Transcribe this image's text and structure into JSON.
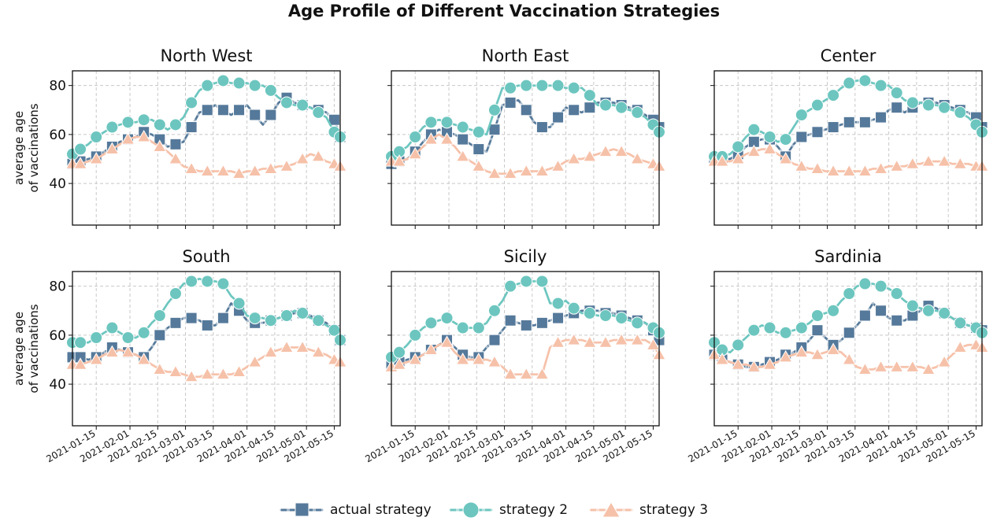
{
  "title": "Age Profile of Different Vaccination Strategies",
  "colors": {
    "actual": "#55799a",
    "strategy2": "#6cc6bf",
    "strategy3": "#f6c1a9",
    "grid": "#c8c8c8"
  },
  "chart_data": {
    "type": "line",
    "title": "Age Profile of Different Vaccination Strategies",
    "ylabel": "average age of vaccinations",
    "xlabel": "",
    "ylim": [
      23,
      86
    ],
    "xlim": [
      "2021-01-03",
      "2021-05-18"
    ],
    "yticks": [
      40,
      60,
      80
    ],
    "xticks": [
      "2021-01-15",
      "2021-02-01",
      "2021-02-15",
      "2021-03-01",
      "2021-03-15",
      "2021-04-01",
      "2021-04-15",
      "2021-05-01",
      "2021-05-15"
    ],
    "grid": true,
    "legend": {
      "placement": "bottom-center",
      "entries": [
        "actual strategy",
        "strategy 2",
        "strategy 3"
      ]
    },
    "x": [
      "2021-01-03",
      "2021-01-07",
      "2021-01-11",
      "2021-01-15",
      "2021-01-19",
      "2021-01-23",
      "2021-01-27",
      "2021-01-31",
      "2021-02-04",
      "2021-02-08",
      "2021-02-12",
      "2021-02-16",
      "2021-02-20",
      "2021-02-24",
      "2021-02-28",
      "2021-03-04",
      "2021-03-08",
      "2021-03-12",
      "2021-03-16",
      "2021-03-20",
      "2021-03-24",
      "2021-03-28",
      "2021-04-01",
      "2021-04-05",
      "2021-04-09",
      "2021-04-13",
      "2021-04-17",
      "2021-04-21",
      "2021-04-25",
      "2021-04-29",
      "2021-05-03",
      "2021-05-07",
      "2021-05-11",
      "2021-05-15",
      "2021-05-18"
    ],
    "panels": [
      {
        "title": "North West",
        "series": [
          {
            "name": "actual strategy",
            "values": [
              48,
              49,
              50,
              51,
              53,
              55,
              57,
              58,
              59,
              61,
              60,
              58,
              55,
              56,
              57,
              63,
              69,
              70,
              72,
              70,
              68,
              70,
              72,
              68,
              64,
              68,
              73,
              75,
              73,
              72,
              71,
              70,
              69,
              66,
              59
            ]
          },
          {
            "name": "strategy 2",
            "values": [
              52,
              54,
              56,
              59,
              61,
              63,
              64,
              65,
              65,
              66,
              66,
              64,
              62,
              64,
              67,
              73,
              78,
              80,
              81,
              82,
              81,
              81,
              81,
              80,
              80,
              78,
              75,
              73,
              72,
              72,
              71,
              69,
              67,
              61,
              59
            ]
          },
          {
            "name": "strategy 3",
            "values": [
              48,
              48,
              49,
              50,
              52,
              54,
              56,
              58,
              59,
              59,
              57,
              55,
              53,
              50,
              47,
              46,
              45,
              45,
              45,
              45,
              45,
              44,
              45,
              45,
              46,
              46,
              47,
              47,
              48,
              50,
              52,
              51,
              49,
              48,
              47
            ]
          }
        ]
      },
      {
        "title": "North East",
        "series": [
          {
            "name": "actual strategy",
            "values": [
              48,
              49,
              50,
              53,
              57,
              60,
              62,
              61,
              60,
              58,
              56,
              54,
              53,
              62,
              72,
              73,
              74,
              70,
              65,
              63,
              63,
              67,
              71,
              70,
              69,
              71,
              73,
              73,
              73,
              72,
              71,
              70,
              68,
              66,
              63
            ]
          },
          {
            "name": "strategy 2",
            "values": [
              51,
              53,
              55,
              59,
              63,
              65,
              66,
              65,
              64,
              63,
              62,
              61,
              60,
              70,
              79,
              79,
              80,
              80,
              80,
              80,
              80,
              80,
              79,
              79,
              79,
              76,
              72,
              72,
              72,
              71,
              70,
              69,
              67,
              64,
              61
            ]
          },
          {
            "name": "strategy 3",
            "values": [
              49,
              49,
              50,
              52,
              55,
              58,
              60,
              58,
              55,
              51,
              49,
              47,
              45,
              44,
              44,
              44,
              45,
              45,
              45,
              45,
              46,
              47,
              49,
              50,
              50,
              51,
              52,
              53,
              54,
              53,
              52,
              50,
              49,
              48,
              47
            ]
          }
        ]
      },
      {
        "title": "Center",
        "series": [
          {
            "name": "actual strategy",
            "values": [
              50,
              50,
              50,
              52,
              55,
              57,
              58,
              58,
              55,
              51,
              56,
              59,
              60,
              61,
              62,
              63,
              64,
              65,
              65,
              65,
              66,
              67,
              70,
              71,
              69,
              71,
              73,
              73,
              73,
              72,
              71,
              70,
              69,
              67,
              63
            ]
          },
          {
            "name": "strategy 2",
            "values": [
              51,
              51,
              52,
              55,
              59,
              62,
              61,
              59,
              57,
              58,
              63,
              68,
              70,
              72,
              74,
              76,
              79,
              81,
              82,
              82,
              81,
              80,
              80,
              77,
              74,
              73,
              73,
              72,
              72,
              71,
              70,
              69,
              67,
              64,
              61
            ]
          },
          {
            "name": "strategy 3",
            "values": [
              49,
              49,
              49,
              50,
              52,
              53,
              54,
              54,
              52,
              50,
              48,
              47,
              46,
              46,
              45,
              45,
              45,
              45,
              45,
              45,
              46,
              46,
              47,
              47,
              47,
              48,
              48,
              49,
              49,
              49,
              48,
              48,
              48,
              47,
              47
            ]
          }
        ]
      },
      {
        "title": "South",
        "series": [
          {
            "name": "actual strategy",
            "values": [
              51,
              51,
              50,
              51,
              53,
              55,
              54,
              53,
              52,
              51,
              55,
              60,
              63,
              65,
              67,
              67,
              66,
              64,
              64,
              67,
              73,
              70,
              66,
              65,
              65,
              66,
              67,
              68,
              69,
              69,
              68,
              66,
              65,
              62,
              58
            ]
          },
          {
            "name": "strategy 2",
            "values": [
              57,
              57,
              57,
              59,
              61,
              63,
              61,
              59,
              59,
              61,
              65,
              68,
              73,
              77,
              81,
              82,
              83,
              82,
              82,
              81,
              76,
              73,
              68,
              67,
              67,
              66,
              67,
              68,
              70,
              69,
              67,
              66,
              64,
              62,
              58
            ]
          },
          {
            "name": "strategy 3",
            "values": [
              48,
              48,
              49,
              50,
              52,
              53,
              54,
              53,
              52,
              50,
              48,
              46,
              45,
              45,
              44,
              43,
              43,
              44,
              44,
              44,
              44,
              45,
              47,
              49,
              51,
              53,
              54,
              55,
              55,
              55,
              54,
              53,
              52,
              50,
              49
            ]
          }
        ]
      },
      {
        "title": "Sicily",
        "series": [
          {
            "name": "actual strategy",
            "values": [
              48,
              49,
              50,
              51,
              52,
              54,
              56,
              58,
              55,
              52,
              51,
              51,
              55,
              58,
              62,
              66,
              65,
              64,
              64,
              65,
              66,
              67,
              68,
              69,
              70,
              70,
              70,
              69,
              69,
              68,
              67,
              66,
              65,
              62,
              58
            ]
          },
          {
            "name": "strategy 2",
            "values": [
              51,
              53,
              56,
              60,
              63,
              65,
              66,
              67,
              65,
              63,
              63,
              63,
              65,
              70,
              74,
              80,
              81,
              82,
              82,
              82,
              73,
              73,
              74,
              71,
              69,
              69,
              68,
              68,
              68,
              67,
              66,
              65,
              65,
              63,
              61
            ]
          },
          {
            "name": "strategy 3",
            "values": [
              47,
              48,
              49,
              50,
              52,
              54,
              56,
              57,
              53,
              50,
              50,
              50,
              50,
              49,
              47,
              44,
              44,
              44,
              44,
              44,
              55,
              57,
              58,
              58,
              58,
              57,
              57,
              57,
              58,
              58,
              58,
              58,
              58,
              56,
              52
            ]
          }
        ]
      },
      {
        "title": "Sardinia",
        "series": [
          {
            "name": "actual strategy",
            "values": [
              52,
              50,
              49,
              48,
              47,
              47,
              48,
              49,
              50,
              52,
              53,
              55,
              58,
              62,
              59,
              56,
              58,
              61,
              64,
              68,
              73,
              70,
              67,
              66,
              66,
              68,
              70,
              72,
              71,
              69,
              67,
              65,
              64,
              63,
              62
            ]
          },
          {
            "name": "strategy 2",
            "values": [
              57,
              54,
              53,
              56,
              59,
              62,
              64,
              63,
              61,
              61,
              62,
              63,
              65,
              68,
              69,
              70,
              74,
              77,
              80,
              81,
              81,
              80,
              79,
              77,
              74,
              72,
              71,
              70,
              70,
              69,
              67,
              65,
              64,
              63,
              61
            ]
          },
          {
            "name": "strategy 3",
            "values": [
              52,
              50,
              49,
              48,
              48,
              47,
              47,
              48,
              49,
              51,
              52,
              53,
              53,
              52,
              53,
              54,
              53,
              50,
              47,
              46,
              46,
              47,
              47,
              47,
              47,
              47,
              47,
              46,
              47,
              49,
              52,
              55,
              56,
              56,
              55
            ]
          }
        ]
      }
    ]
  }
}
